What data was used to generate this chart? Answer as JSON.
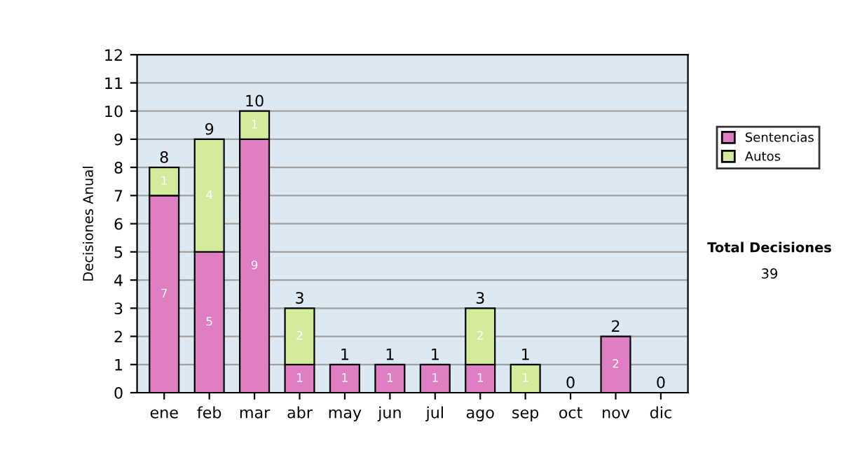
{
  "chart_data": {
    "type": "bar",
    "stacked": true,
    "ylabel": "Decisiones Anual",
    "categories": [
      "ene",
      "feb",
      "mar",
      "abr",
      "may",
      "jun",
      "jul",
      "ago",
      "sep",
      "oct",
      "nov",
      "dic"
    ],
    "series": [
      {
        "name": "Sentencias",
        "color": "#e07ec4",
        "values": [
          7,
          5,
          9,
          1,
          1,
          1,
          1,
          1,
          0,
          0,
          2,
          0
        ],
        "value_labels": [
          "7",
          "5",
          "9",
          "1",
          "1",
          "1",
          "1",
          "1",
          null,
          null,
          "2",
          null
        ]
      },
      {
        "name": "Autos",
        "color": "#d4eb9c",
        "values": [
          1,
          4,
          1,
          2,
          0,
          0,
          0,
          2,
          1,
          0,
          0,
          0
        ],
        "value_labels": [
          "1",
          "4",
          "1",
          "2",
          null,
          null,
          null,
          "2",
          "1",
          null,
          null,
          null
        ]
      }
    ],
    "totals": [
      "8",
      "9",
      "10",
      "3",
      "1",
      "1",
      "1",
      "3",
      "1",
      "0",
      "2",
      "0"
    ],
    "ylim": [
      0,
      12
    ],
    "yticks": [
      0,
      1,
      2,
      3,
      4,
      5,
      6,
      7,
      8,
      9,
      10,
      11,
      12
    ],
    "grid": "y",
    "legend": "right",
    "annotations": [
      "Total Decisiones",
      "39"
    ]
  }
}
